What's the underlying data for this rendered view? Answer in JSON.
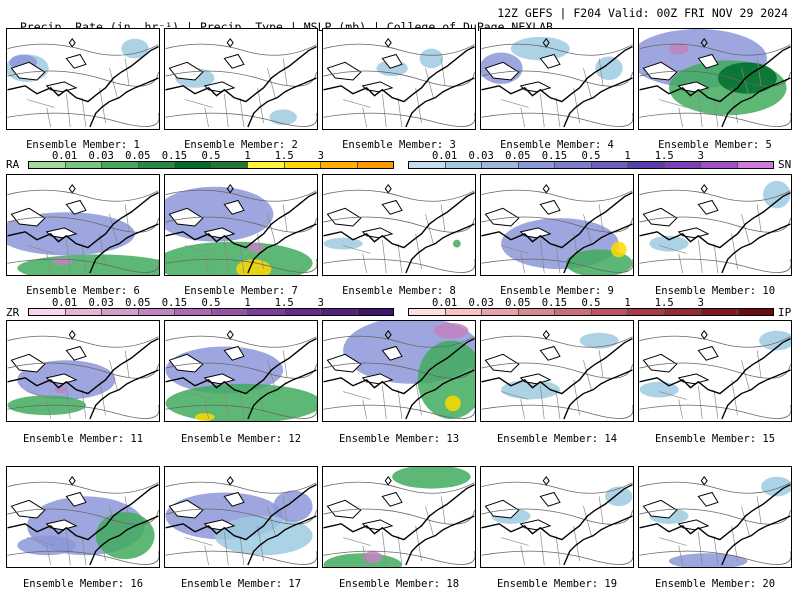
{
  "header": {
    "left": "Precip. Rate (in. hr⁻¹) | Precip. Type | MSLP (mb) | College of DuPage NEXLAB",
    "right": "12Z GEFS | F204 Valid: 00Z FRI NOV 29 2024"
  },
  "members": [
    "Ensemble Member: 1",
    "Ensemble Member: 2",
    "Ensemble Member: 3",
    "Ensemble Member: 4",
    "Ensemble Member: 5",
    "Ensemble Member: 6",
    "Ensemble Member: 7",
    "Ensemble Member: 8",
    "Ensemble Member: 9",
    "Ensemble Member: 10",
    "Ensemble Member: 11",
    "Ensemble Member: 12",
    "Ensemble Member: 13",
    "Ensemble Member: 14",
    "Ensemble Member: 15",
    "Ensemble Member: 16",
    "Ensemble Member: 17",
    "Ensemble Member: 18",
    "Ensemble Member: 19",
    "Ensemble Member: 20"
  ],
  "legends": {
    "rain": {
      "label": "RA",
      "ticks": [
        "0.01",
        "0.03",
        "0.05",
        "0.15",
        "0.5",
        "1",
        "1.5",
        "3"
      ],
      "colors": [
        "#a6dba0",
        "#78c679",
        "#41ab5d",
        "#238b45",
        "#006d2c",
        "#1b7837",
        "#fff33b",
        "#ffd800",
        "#ffb000",
        "#ff9900"
      ]
    },
    "snow": {
      "label": "SN",
      "ticks": [
        "0.01",
        "0.03",
        "0.05",
        "0.15",
        "0.5",
        "1",
        "1.5",
        "3"
      ],
      "colors": [
        "#c6dbef",
        "#9ecae1",
        "#a0b4e0",
        "#8c96d8",
        "#7a7ccc",
        "#6b5fc0",
        "#5a3fb0",
        "#7b3fb8",
        "#a050c8",
        "#d07adc"
      ]
    },
    "freezing": {
      "label": "ZR",
      "ticks": [
        "0.01",
        "0.03",
        "0.05",
        "0.15",
        "0.5",
        "1",
        "1.5",
        "3"
      ],
      "colors": [
        "#fbd3e9",
        "#e7b4d6",
        "#d59ccc",
        "#c283c0",
        "#ad6ab4",
        "#9752a8",
        "#7f3c9c",
        "#6a2a8c",
        "#55207c",
        "#40166c"
      ]
    },
    "sleet": {
      "label": "IP",
      "ticks": [
        "0.01",
        "0.03",
        "0.05",
        "0.15",
        "0.5",
        "1",
        "1.5",
        "3"
      ],
      "colors": [
        "#fde0dd",
        "#f9c2c2",
        "#eaa0a8",
        "#dc8890",
        "#cc6e78",
        "#bb5460",
        "#a83c48",
        "#942a34",
        "#801a22",
        "#6c0c12"
      ]
    }
  },
  "colors": {
    "snow": "#8c96d8",
    "rain": "#41ab5d",
    "heavy_rain": "#006d2c",
    "ice": "#ffd800",
    "mix": "#c283c0",
    "light_snow": "#9ecae1"
  },
  "icons": {
    "city_marker": "diamond-marker-icon"
  }
}
